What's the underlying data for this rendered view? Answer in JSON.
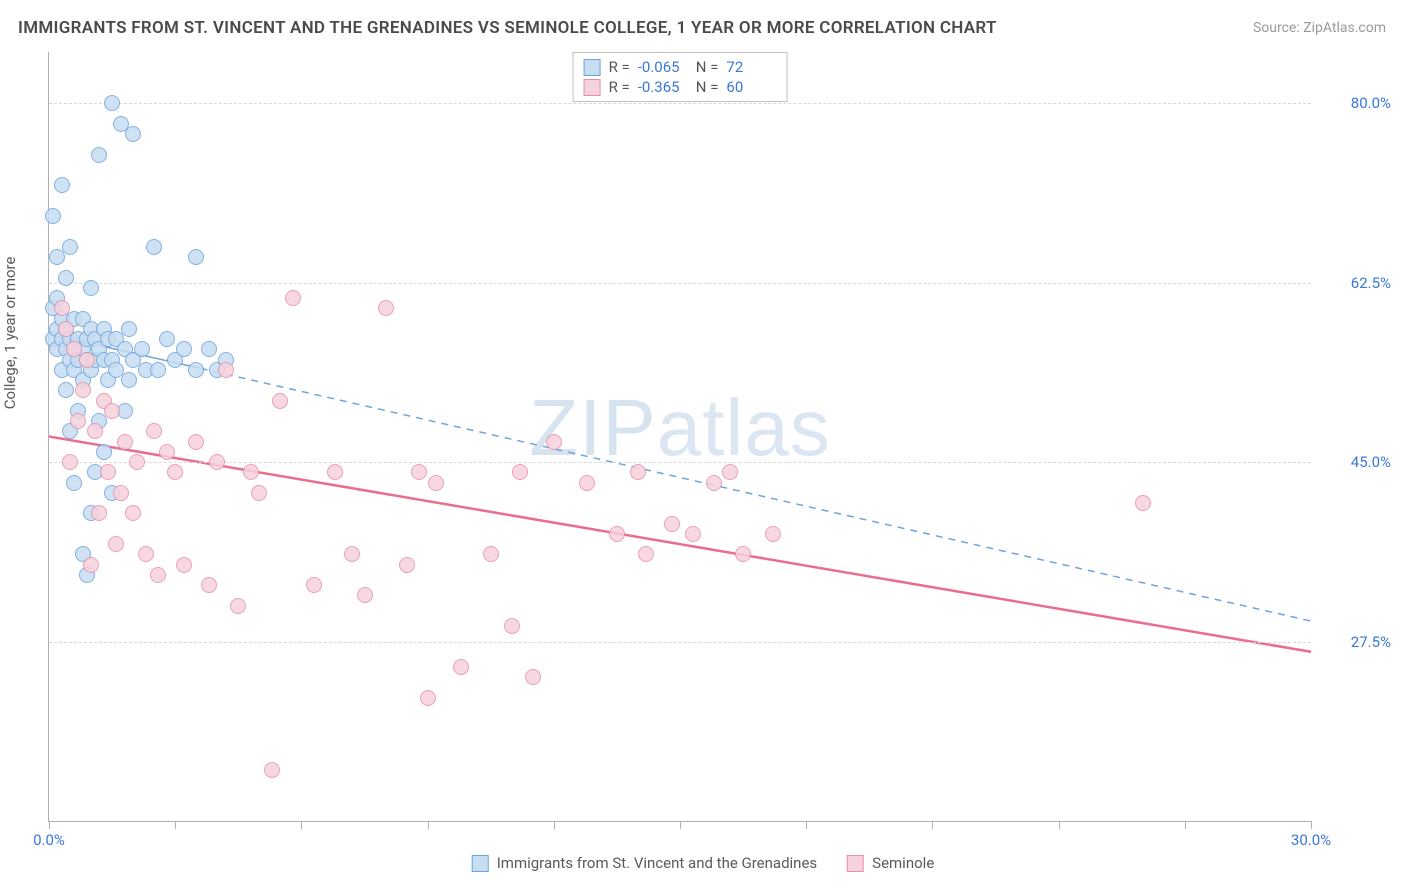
{
  "title": "IMMIGRANTS FROM ST. VINCENT AND THE GRENADINES VS SEMINOLE COLLEGE, 1 YEAR OR MORE CORRELATION CHART",
  "source_label": "Source: ",
  "source_name": "ZipAtlas.com",
  "y_axis_label": "College, 1 year or more",
  "watermark_a": "ZIP",
  "watermark_b": "atlas",
  "chart": {
    "type": "scatter",
    "xlim": [
      0,
      30
    ],
    "ylim": [
      10,
      85
    ],
    "y_ticks": [
      27.5,
      45.0,
      62.5,
      80.0
    ],
    "y_tick_labels": [
      "27.5%",
      "45.0%",
      "62.5%",
      "80.0%"
    ],
    "x_tick_positions": [
      0,
      3,
      6,
      9,
      12,
      15,
      18,
      21,
      24,
      27,
      30
    ],
    "x_min_label": "0.0%",
    "x_max_label": "30.0%",
    "grid_color": "#d8d8d8",
    "axis_color": "#b0b0b0",
    "background_color": "#ffffff",
    "tick_label_color": "#3b78d8",
    "marker_radius": 8,
    "marker_stroke_width": 1.5,
    "series": [
      {
        "key": "series_a",
        "label": "Immigrants from St. Vincent and the Grenadines",
        "fill": "#c7ddf2",
        "stroke": "#6fa4dd",
        "R": "-0.065",
        "N": "72",
        "trend": {
          "y0": 57.5,
          "y1": 29.5,
          "width": 1.5,
          "dash": "7 6",
          "color": "#6fa4dd",
          "solid_frac": 0.12
        },
        "points": [
          [
            0.1,
            57
          ],
          [
            0.1,
            60
          ],
          [
            0.1,
            69
          ],
          [
            0.2,
            56
          ],
          [
            0.2,
            58
          ],
          [
            0.2,
            61
          ],
          [
            0.2,
            65
          ],
          [
            0.3,
            54
          ],
          [
            0.3,
            57
          ],
          [
            0.3,
            59
          ],
          [
            0.3,
            72
          ],
          [
            0.4,
            52
          ],
          [
            0.4,
            56
          ],
          [
            0.4,
            58
          ],
          [
            0.4,
            63
          ],
          [
            0.5,
            48
          ],
          [
            0.5,
            55
          ],
          [
            0.5,
            57
          ],
          [
            0.5,
            66
          ],
          [
            0.6,
            43
          ],
          [
            0.6,
            54
          ],
          [
            0.6,
            56
          ],
          [
            0.6,
            59
          ],
          [
            0.7,
            50
          ],
          [
            0.7,
            55
          ],
          [
            0.7,
            57
          ],
          [
            0.8,
            36
          ],
          [
            0.8,
            53
          ],
          [
            0.8,
            56
          ],
          [
            0.8,
            59
          ],
          [
            0.9,
            34
          ],
          [
            0.9,
            55
          ],
          [
            0.9,
            57
          ],
          [
            1.0,
            40
          ],
          [
            1.0,
            54
          ],
          [
            1.0,
            58
          ],
          [
            1.0,
            62
          ],
          [
            1.1,
            44
          ],
          [
            1.1,
            55
          ],
          [
            1.1,
            57
          ],
          [
            1.2,
            49
          ],
          [
            1.2,
            56
          ],
          [
            1.2,
            75
          ],
          [
            1.3,
            46
          ],
          [
            1.3,
            55
          ],
          [
            1.3,
            58
          ],
          [
            1.4,
            53
          ],
          [
            1.4,
            57
          ],
          [
            1.5,
            42
          ],
          [
            1.5,
            55
          ],
          [
            1.5,
            80
          ],
          [
            1.6,
            54
          ],
          [
            1.6,
            57
          ],
          [
            1.7,
            78
          ],
          [
            1.8,
            50
          ],
          [
            1.8,
            56
          ],
          [
            1.9,
            53
          ],
          [
            1.9,
            58
          ],
          [
            2.0,
            55
          ],
          [
            2.0,
            77
          ],
          [
            2.2,
            56
          ],
          [
            2.3,
            54
          ],
          [
            2.5,
            66
          ],
          [
            2.6,
            54
          ],
          [
            2.8,
            57
          ],
          [
            3.0,
            55
          ],
          [
            3.2,
            56
          ],
          [
            3.5,
            54
          ],
          [
            3.5,
            65
          ],
          [
            3.8,
            56
          ],
          [
            4.0,
            54
          ],
          [
            4.2,
            55
          ]
        ]
      },
      {
        "key": "series_b",
        "label": "Seminole",
        "fill": "#f6d2dc",
        "stroke": "#e890aa",
        "R": "-0.365",
        "N": "60",
        "trend": {
          "y0": 47.5,
          "y1": 26.5,
          "width": 2.5,
          "dash": null,
          "color": "#ea6d8f",
          "solid_frac": 1.0
        },
        "points": [
          [
            0.3,
            60
          ],
          [
            0.4,
            58
          ],
          [
            0.5,
            45
          ],
          [
            0.6,
            56
          ],
          [
            0.7,
            49
          ],
          [
            0.8,
            52
          ],
          [
            0.9,
            55
          ],
          [
            1.0,
            35
          ],
          [
            1.1,
            48
          ],
          [
            1.2,
            40
          ],
          [
            1.3,
            51
          ],
          [
            1.4,
            44
          ],
          [
            1.5,
            50
          ],
          [
            1.6,
            37
          ],
          [
            1.7,
            42
          ],
          [
            1.8,
            47
          ],
          [
            2.0,
            40
          ],
          [
            2.1,
            45
          ],
          [
            2.3,
            36
          ],
          [
            2.5,
            48
          ],
          [
            2.6,
            34
          ],
          [
            2.8,
            46
          ],
          [
            3.0,
            44
          ],
          [
            3.2,
            35
          ],
          [
            3.5,
            47
          ],
          [
            3.8,
            33
          ],
          [
            4.0,
            45
          ],
          [
            4.2,
            54
          ],
          [
            4.5,
            31
          ],
          [
            4.8,
            44
          ],
          [
            5.0,
            42
          ],
          [
            5.3,
            15
          ],
          [
            5.5,
            51
          ],
          [
            5.8,
            61
          ],
          [
            6.3,
            33
          ],
          [
            6.8,
            44
          ],
          [
            7.2,
            36
          ],
          [
            7.5,
            32
          ],
          [
            8.0,
            60
          ],
          [
            8.5,
            35
          ],
          [
            8.8,
            44
          ],
          [
            9.0,
            22
          ],
          [
            9.2,
            43
          ],
          [
            9.8,
            25
          ],
          [
            10.5,
            36
          ],
          [
            11.0,
            29
          ],
          [
            11.2,
            44
          ],
          [
            11.5,
            24
          ],
          [
            12.0,
            47
          ],
          [
            12.8,
            43
          ],
          [
            13.5,
            38
          ],
          [
            14.0,
            44
          ],
          [
            14.2,
            36
          ],
          [
            14.8,
            39
          ],
          [
            15.3,
            38
          ],
          [
            15.8,
            43
          ],
          [
            16.2,
            44
          ],
          [
            16.5,
            36
          ],
          [
            17.2,
            38
          ],
          [
            26.0,
            41
          ]
        ]
      }
    ]
  },
  "legend_top_labels": {
    "R": "R =",
    "N": "N ="
  }
}
